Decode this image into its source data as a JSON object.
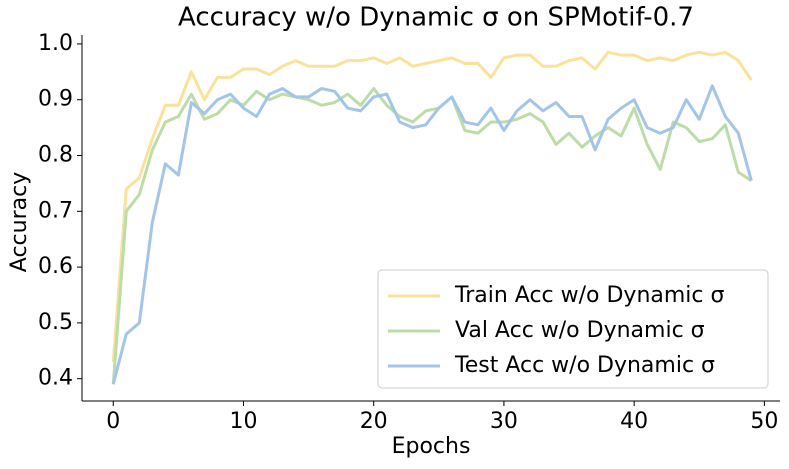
{
  "chart_data": {
    "type": "line",
    "title": "Accuracy w/o Dynamic σ on SPMotif-0.7",
    "x_label": "Epochs",
    "y_label": "Accuracy",
    "x": [
      0,
      1,
      2,
      3,
      4,
      5,
      6,
      7,
      8,
      9,
      10,
      11,
      12,
      13,
      14,
      15,
      16,
      17,
      18,
      19,
      20,
      21,
      22,
      23,
      24,
      25,
      26,
      27,
      28,
      29,
      30,
      31,
      32,
      33,
      34,
      35,
      36,
      37,
      38,
      39,
      40,
      41,
      42,
      43,
      44,
      45,
      46,
      47,
      48,
      49
    ],
    "series": [
      {
        "name": "Train Acc w/o Dynamic σ",
        "color": "#fbe29a",
        "values": [
          0.43,
          0.74,
          0.76,
          0.83,
          0.89,
          0.89,
          0.95,
          0.9,
          0.94,
          0.94,
          0.955,
          0.955,
          0.945,
          0.96,
          0.97,
          0.96,
          0.96,
          0.96,
          0.97,
          0.97,
          0.975,
          0.965,
          0.975,
          0.96,
          0.965,
          0.97,
          0.975,
          0.965,
          0.965,
          0.94,
          0.975,
          0.98,
          0.98,
          0.96,
          0.96,
          0.97,
          0.975,
          0.955,
          0.985,
          0.98,
          0.98,
          0.97,
          0.975,
          0.97,
          0.98,
          0.985,
          0.98,
          0.985,
          0.97,
          0.935
        ]
      },
      {
        "name": "Val Acc w/o Dynamic σ",
        "color": "#bcdca8",
        "values": [
          0.39,
          0.7,
          0.73,
          0.81,
          0.86,
          0.87,
          0.91,
          0.865,
          0.875,
          0.9,
          0.89,
          0.915,
          0.9,
          0.91,
          0.905,
          0.9,
          0.89,
          0.895,
          0.91,
          0.89,
          0.92,
          0.89,
          0.87,
          0.86,
          0.88,
          0.885,
          0.905,
          0.845,
          0.84,
          0.86,
          0.86,
          0.865,
          0.875,
          0.86,
          0.82,
          0.84,
          0.815,
          0.835,
          0.85,
          0.835,
          0.885,
          0.82,
          0.775,
          0.86,
          0.85,
          0.825,
          0.83,
          0.855,
          0.77,
          0.755
        ]
      },
      {
        "name": "Test Acc w/o Dynamic σ",
        "color": "#a3c5e8",
        "values": [
          0.39,
          0.48,
          0.5,
          0.68,
          0.785,
          0.765,
          0.895,
          0.875,
          0.9,
          0.91,
          0.885,
          0.87,
          0.91,
          0.92,
          0.905,
          0.905,
          0.92,
          0.915,
          0.885,
          0.88,
          0.905,
          0.91,
          0.86,
          0.85,
          0.855,
          0.885,
          0.905,
          0.86,
          0.855,
          0.885,
          0.845,
          0.88,
          0.9,
          0.88,
          0.895,
          0.87,
          0.87,
          0.81,
          0.865,
          0.885,
          0.9,
          0.85,
          0.84,
          0.85,
          0.9,
          0.865,
          0.925,
          0.87,
          0.84,
          0.755
        ]
      }
    ],
    "xlim": [
      -2.4,
      51.2
    ],
    "ylim": [
      0.36,
      1.016
    ],
    "xticks": [
      0,
      10,
      20,
      30,
      40,
      50
    ],
    "yticks": [
      0.4,
      0.5,
      0.6,
      0.7,
      0.8,
      0.9,
      {
        "value": 1,
        "label": "1.0"
      }
    ],
    "legend": "lower right",
    "grid": false
  }
}
